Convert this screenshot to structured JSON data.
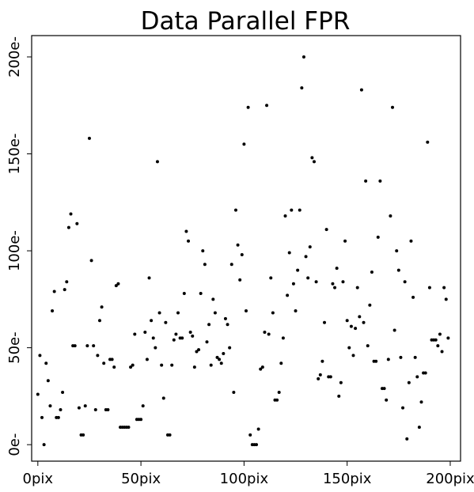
{
  "chart_data": {
    "type": "scatter",
    "title": "Data Parallel FPR",
    "xlabel": "",
    "ylabel": "",
    "xlim": [
      -3,
      205
    ],
    "ylim": [
      -8.5,
      211
    ],
    "xticks": [
      0,
      50,
      100,
      150,
      200
    ],
    "xtick_labels": [
      "0pix",
      "50pix",
      "100pix",
      "150pix",
      "200pix"
    ],
    "yticks": [
      0,
      50,
      100,
      150,
      200
    ],
    "ytick_labels": [
      "0e-",
      "50e-",
      "100e-",
      "150e-",
      "200e-"
    ],
    "grid": false,
    "legend": "none",
    "marker_color": "#000000",
    "points": [
      [
        0,
        26
      ],
      [
        1,
        46
      ],
      [
        2,
        14
      ],
      [
        3,
        0
      ],
      [
        4,
        42
      ],
      [
        5,
        33
      ],
      [
        6,
        20
      ],
      [
        7,
        69
      ],
      [
        8,
        79
      ],
      [
        9,
        14
      ],
      [
        10,
        14
      ],
      [
        11,
        18
      ],
      [
        12,
        27
      ],
      [
        13,
        80
      ],
      [
        14,
        84
      ],
      [
        15,
        112
      ],
      [
        16,
        119
      ],
      [
        17,
        51
      ],
      [
        18,
        51
      ],
      [
        19,
        114
      ],
      [
        20,
        19
      ],
      [
        21,
        5
      ],
      [
        22,
        5
      ],
      [
        23,
        20
      ],
      [
        24,
        51
      ],
      [
        25,
        158
      ],
      [
        26,
        95
      ],
      [
        27,
        51
      ],
      [
        28,
        18
      ],
      [
        29,
        46
      ],
      [
        30,
        64
      ],
      [
        31,
        71
      ],
      [
        32,
        42
      ],
      [
        33,
        18
      ],
      [
        34,
        18
      ],
      [
        35,
        44
      ],
      [
        36,
        44
      ],
      [
        37,
        40
      ],
      [
        38,
        82
      ],
      [
        39,
        83
      ],
      [
        40,
        9
      ],
      [
        41,
        9
      ],
      [
        42,
        9
      ],
      [
        43,
        9
      ],
      [
        44,
        9
      ],
      [
        45,
        40
      ],
      [
        46,
        41
      ],
      [
        47,
        57
      ],
      [
        48,
        13
      ],
      [
        49,
        13
      ],
      [
        50,
        13
      ],
      [
        51,
        20
      ],
      [
        52,
        58
      ],
      [
        53,
        44
      ],
      [
        54,
        86
      ],
      [
        55,
        64
      ],
      [
        56,
        55
      ],
      [
        57,
        50
      ],
      [
        58,
        146
      ],
      [
        59,
        68
      ],
      [
        60,
        41
      ],
      [
        61,
        24
      ],
      [
        62,
        63
      ],
      [
        63,
        5
      ],
      [
        64,
        5
      ],
      [
        65,
        41
      ],
      [
        66,
        54
      ],
      [
        67,
        57
      ],
      [
        68,
        68
      ],
      [
        69,
        55
      ],
      [
        70,
        55
      ],
      [
        71,
        78
      ],
      [
        72,
        110
      ],
      [
        73,
        105
      ],
      [
        74,
        58
      ],
      [
        75,
        56
      ],
      [
        76,
        40
      ],
      [
        77,
        48
      ],
      [
        78,
        49
      ],
      [
        79,
        78
      ],
      [
        80,
        100
      ],
      [
        81,
        93
      ],
      [
        82,
        53
      ],
      [
        83,
        62
      ],
      [
        84,
        41
      ],
      [
        85,
        75
      ],
      [
        86,
        68
      ],
      [
        87,
        45
      ],
      [
        88,
        44
      ],
      [
        89,
        42
      ],
      [
        90,
        47
      ],
      [
        91,
        65
      ],
      [
        92,
        62
      ],
      [
        93,
        50
      ],
      [
        94,
        93
      ],
      [
        95,
        27
      ],
      [
        96,
        121
      ],
      [
        97,
        103
      ],
      [
        98,
        85
      ],
      [
        99,
        98
      ],
      [
        100,
        155
      ],
      [
        101,
        69
      ],
      [
        102,
        174
      ],
      [
        103,
        5
      ],
      [
        104,
        0
      ],
      [
        105,
        0
      ],
      [
        106,
        0
      ],
      [
        107,
        8
      ],
      [
        108,
        39
      ],
      [
        109,
        40
      ],
      [
        110,
        58
      ],
      [
        111,
        175
      ],
      [
        112,
        57
      ],
      [
        113,
        86
      ],
      [
        114,
        68
      ],
      [
        115,
        23
      ],
      [
        116,
        23
      ],
      [
        117,
        27
      ],
      [
        118,
        42
      ],
      [
        119,
        55
      ],
      [
        120,
        118
      ],
      [
        121,
        77
      ],
      [
        122,
        99
      ],
      [
        123,
        121
      ],
      [
        124,
        83
      ],
      [
        125,
        69
      ],
      [
        126,
        90
      ],
      [
        127,
        121
      ],
      [
        128,
        184
      ],
      [
        129,
        200
      ],
      [
        130,
        97
      ],
      [
        131,
        86
      ],
      [
        132,
        102
      ],
      [
        133,
        148
      ],
      [
        134,
        146
      ],
      [
        135,
        84
      ],
      [
        136,
        34
      ],
      [
        137,
        36
      ],
      [
        138,
        43
      ],
      [
        139,
        63
      ],
      [
        140,
        111
      ],
      [
        141,
        35
      ],
      [
        142,
        35
      ],
      [
        143,
        83
      ],
      [
        144,
        81
      ],
      [
        145,
        91
      ],
      [
        146,
        25
      ],
      [
        147,
        32
      ],
      [
        148,
        84
      ],
      [
        149,
        105
      ],
      [
        150,
        64
      ],
      [
        151,
        50
      ],
      [
        152,
        61
      ],
      [
        153,
        46
      ],
      [
        154,
        60
      ],
      [
        155,
        81
      ],
      [
        156,
        66
      ],
      [
        157,
        183
      ],
      [
        158,
        63
      ],
      [
        159,
        136
      ],
      [
        160,
        51
      ],
      [
        161,
        72
      ],
      [
        162,
        89
      ],
      [
        163,
        43
      ],
      [
        164,
        43
      ],
      [
        165,
        107
      ],
      [
        166,
        136
      ],
      [
        167,
        29
      ],
      [
        168,
        29
      ],
      [
        169,
        23
      ],
      [
        170,
        44
      ],
      [
        171,
        118
      ],
      [
        172,
        174
      ],
      [
        173,
        59
      ],
      [
        174,
        100
      ],
      [
        175,
        90
      ],
      [
        176,
        45
      ],
      [
        177,
        19
      ],
      [
        178,
        84
      ],
      [
        179,
        3
      ],
      [
        180,
        32
      ],
      [
        181,
        105
      ],
      [
        182,
        76
      ],
      [
        183,
        45
      ],
      [
        184,
        35
      ],
      [
        185,
        9
      ],
      [
        186,
        22
      ],
      [
        187,
        37
      ],
      [
        188,
        37
      ],
      [
        189,
        156
      ],
      [
        190,
        81
      ],
      [
        191,
        54
      ],
      [
        192,
        54
      ],
      [
        193,
        54
      ],
      [
        194,
        51
      ],
      [
        195,
        57
      ],
      [
        196,
        48
      ],
      [
        197,
        81
      ],
      [
        198,
        75
      ],
      [
        199,
        55
      ]
    ]
  }
}
